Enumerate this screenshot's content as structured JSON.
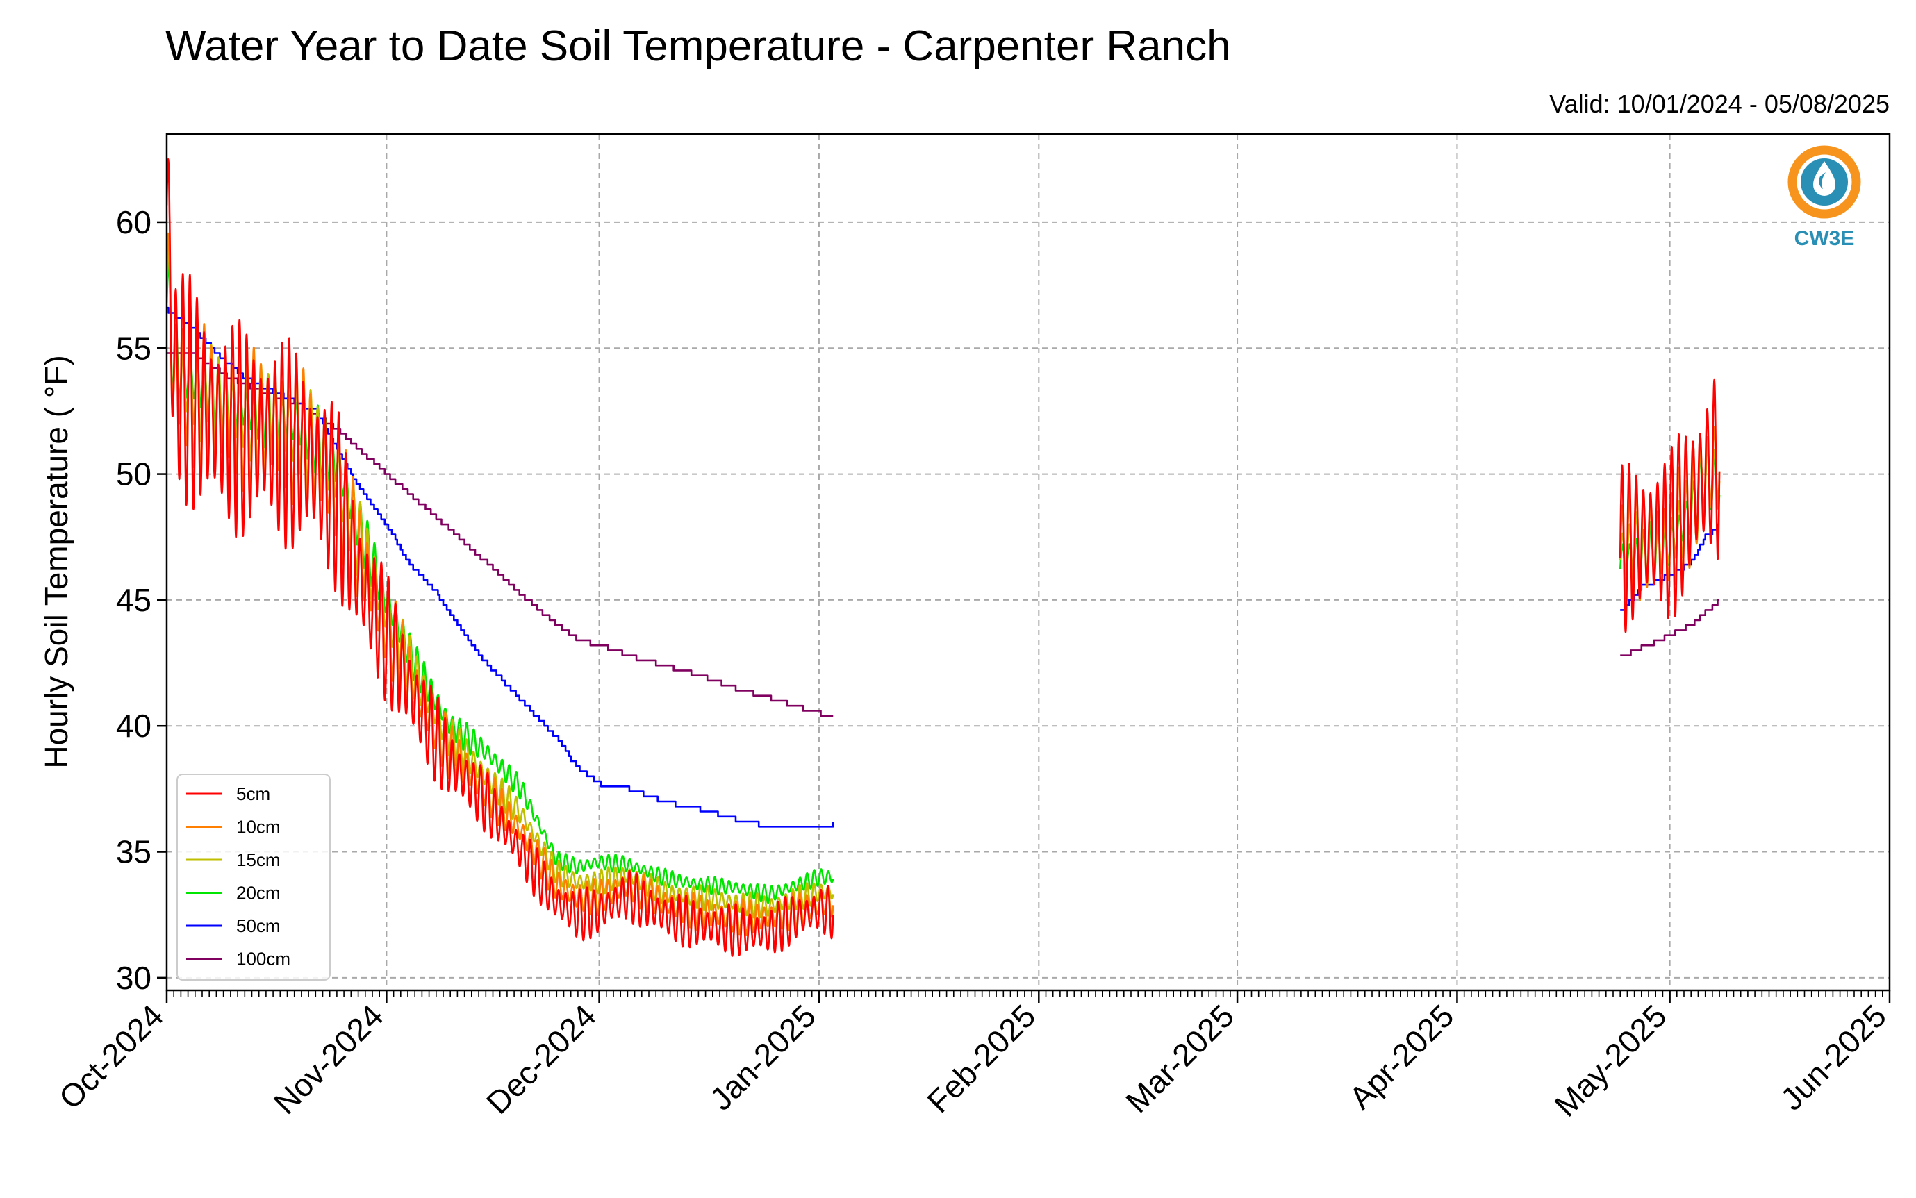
{
  "chart_data": {
    "type": "line",
    "title": "Water Year to Date Soil Temperature - Carpenter Ranch",
    "valid_text": "Valid: 10/01/2024 - 05/08/2025",
    "ylabel": "Hourly Soil Temperature ( °F)",
    "xlabel": "",
    "xlim": [
      "2024-10-01",
      "2025-06-01"
    ],
    "ylim": [
      29.5,
      63.5
    ],
    "grid": true,
    "legend_position": "lower-left",
    "x_ticks": [
      "2024-10-01",
      "2024-11-01",
      "2024-12-01",
      "2025-01-01",
      "2025-02-01",
      "2025-03-01",
      "2025-04-01",
      "2025-05-01",
      "2025-06-01"
    ],
    "x_tick_labels": [
      "Oct-2024",
      "Nov-2024",
      "Dec-2024",
      "Jan-2025",
      "Feb-2025",
      "Mar-2025",
      "Apr-2025",
      "May-2025",
      "Jun-2025"
    ],
    "y_ticks": [
      30,
      35,
      40,
      45,
      50,
      55,
      60
    ],
    "y_tick_labels": [
      "30",
      "35",
      "40",
      "45",
      "50",
      "55",
      "60"
    ],
    "series": [
      {
        "name": "5cm",
        "color": "#ff0000",
        "diurnal": true,
        "segments": [
          [
            [
              "2024-10-01",
              61
            ],
            [
              "2024-10-02",
              54
            ],
            [
              "2024-10-08",
              52
            ],
            [
              "2024-10-15",
              51.5
            ],
            [
              "2024-10-20",
              51
            ],
            [
              "2024-10-25",
              49
            ],
            [
              "2024-10-28",
              46
            ],
            [
              "2024-11-01",
              43.5
            ],
            [
              "2024-11-05",
              41
            ],
            [
              "2024-11-10",
              38.5
            ],
            [
              "2024-11-15",
              37
            ],
            [
              "2024-11-20",
              35
            ],
            [
              "2024-11-25",
              33
            ],
            [
              "2024-11-28",
              32.5
            ],
            [
              "2024-12-01",
              32.6
            ],
            [
              "2024-12-05",
              33.3
            ],
            [
              "2024-12-10",
              32.5
            ],
            [
              "2024-12-15",
              32.1
            ],
            [
              "2024-12-20",
              31.9
            ],
            [
              "2024-12-25",
              31.8
            ],
            [
              "2024-12-28",
              32.3
            ],
            [
              "2025-01-01",
              32.7
            ],
            [
              "2025-01-03",
              32.6
            ]
          ],
          [
            [
              "2025-04-24",
              47
            ],
            [
              "2025-04-28",
              47.5
            ],
            [
              "2025-05-01",
              47.5
            ],
            [
              "2025-05-04",
              49
            ],
            [
              "2025-05-06",
              50
            ],
            [
              "2025-05-08",
              50.5
            ]
          ]
        ]
      },
      {
        "name": "10cm",
        "color": "#ff8000",
        "diurnal": true,
        "segments": [
          [
            [
              "2024-10-01",
              58.5
            ],
            [
              "2024-10-02",
              54
            ],
            [
              "2024-10-08",
              52.5
            ],
            [
              "2024-10-15",
              52
            ],
            [
              "2024-10-20",
              51.5
            ],
            [
              "2024-10-25",
              49.5
            ],
            [
              "2024-10-28",
              47
            ],
            [
              "2024-11-01",
              44
            ],
            [
              "2024-11-05",
              41.5
            ],
            [
              "2024-11-10",
              39
            ],
            [
              "2024-11-15",
              37.5
            ],
            [
              "2024-11-20",
              35.8
            ],
            [
              "2024-11-25",
              33.7
            ],
            [
              "2024-11-28",
              33.2
            ],
            [
              "2024-12-01",
              33.2
            ],
            [
              "2024-12-05",
              33.7
            ],
            [
              "2024-12-10",
              33
            ],
            [
              "2024-12-15",
              32.6
            ],
            [
              "2024-12-20",
              32.4
            ],
            [
              "2024-12-25",
              32.4
            ],
            [
              "2024-12-28",
              32.6
            ],
            [
              "2025-01-01",
              32.9
            ],
            [
              "2025-01-03",
              33
            ]
          ],
          [
            [
              "2025-04-24",
              47
            ],
            [
              "2025-04-28",
              47.3
            ],
            [
              "2025-05-01",
              47.3
            ],
            [
              "2025-05-04",
              48.8
            ],
            [
              "2025-05-06",
              50
            ],
            [
              "2025-05-08",
              50.5
            ]
          ]
        ]
      },
      {
        "name": "15cm",
        "color": "#bfbf00",
        "diurnal": true,
        "segments": [
          [
            [
              "2024-10-01",
              58
            ],
            [
              "2024-10-02",
              54
            ],
            [
              "2024-10-08",
              52.8
            ],
            [
              "2024-10-15",
              52.2
            ],
            [
              "2024-10-20",
              51.8
            ],
            [
              "2024-10-25",
              50
            ],
            [
              "2024-10-28",
              47.5
            ],
            [
              "2024-11-01",
              44.5
            ],
            [
              "2024-11-05",
              42
            ],
            [
              "2024-11-10",
              39.5
            ],
            [
              "2024-11-15",
              38
            ],
            [
              "2024-11-20",
              36.5
            ],
            [
              "2024-11-25",
              34.2
            ],
            [
              "2024-11-28",
              33.8
            ],
            [
              "2024-12-01",
              33.8
            ],
            [
              "2024-12-05",
              34.1
            ],
            [
              "2024-12-10",
              33.4
            ],
            [
              "2024-12-15",
              33.2
            ],
            [
              "2024-12-20",
              33
            ],
            [
              "2024-12-25",
              32.8
            ],
            [
              "2024-12-28",
              33.1
            ],
            [
              "2025-01-01",
              33.4
            ],
            [
              "2025-01-03",
              33.4
            ]
          ],
          [
            [
              "2025-04-24",
              46.8
            ],
            [
              "2025-04-28",
              47.3
            ],
            [
              "2025-05-01",
              47.3
            ],
            [
              "2025-05-04",
              48.5
            ],
            [
              "2025-05-06",
              49.8
            ],
            [
              "2025-05-08",
              50
            ]
          ]
        ]
      },
      {
        "name": "20cm",
        "color": "#00e600",
        "diurnal": true,
        "segments": [
          [
            [
              "2024-10-01",
              57.5
            ],
            [
              "2024-10-02",
              54.5
            ],
            [
              "2024-10-08",
              53
            ],
            [
              "2024-10-15",
              52.5
            ],
            [
              "2024-10-20",
              52
            ],
            [
              "2024-10-25",
              50.5
            ],
            [
              "2024-10-28",
              48
            ],
            [
              "2024-11-01",
              45
            ],
            [
              "2024-11-05",
              42.5
            ],
            [
              "2024-11-10",
              40
            ],
            [
              "2024-11-15",
              39
            ],
            [
              "2024-11-20",
              37.5
            ],
            [
              "2024-11-25",
              34.7
            ],
            [
              "2024-11-28",
              34.4
            ],
            [
              "2024-12-01",
              34.6
            ],
            [
              "2024-12-05",
              34.5
            ],
            [
              "2024-12-10",
              34
            ],
            [
              "2024-12-15",
              33.7
            ],
            [
              "2024-12-20",
              33.6
            ],
            [
              "2024-12-25",
              33.3
            ],
            [
              "2024-12-28",
              33.6
            ],
            [
              "2025-01-01",
              34
            ],
            [
              "2025-01-03",
              34
            ]
          ],
          [
            [
              "2025-04-24",
              46.5
            ],
            [
              "2025-04-28",
              47
            ],
            [
              "2025-05-01",
              47.2
            ],
            [
              "2025-05-04",
              48.5
            ],
            [
              "2025-05-06",
              50
            ],
            [
              "2025-05-08",
              49.5
            ]
          ]
        ]
      },
      {
        "name": "50cm",
        "color": "#0000ff",
        "diurnal": false,
        "segments": [
          [
            [
              "2024-10-01",
              56.5
            ],
            [
              "2024-10-04",
              56
            ],
            [
              "2024-10-08",
              54.8
            ],
            [
              "2024-10-12",
              53.8
            ],
            [
              "2024-10-18",
              53
            ],
            [
              "2024-10-22",
              52.5
            ],
            [
              "2024-10-25",
              51
            ],
            [
              "2024-10-28",
              49.5
            ],
            [
              "2024-11-01",
              48
            ],
            [
              "2024-11-04",
              46.5
            ],
            [
              "2024-11-08",
              45.3
            ],
            [
              "2024-11-11",
              44
            ],
            [
              "2024-11-15",
              42.5
            ],
            [
              "2024-11-20",
              41
            ],
            [
              "2024-11-25",
              39.5
            ],
            [
              "2024-11-28",
              38.3
            ],
            [
              "2024-12-01",
              37.7
            ],
            [
              "2024-12-05",
              37.5
            ],
            [
              "2024-12-10",
              37
            ],
            [
              "2024-12-15",
              36.7
            ],
            [
              "2024-12-20",
              36.3
            ],
            [
              "2024-12-25",
              36
            ],
            [
              "2025-01-01",
              36
            ],
            [
              "2025-01-03",
              36.1
            ]
          ],
          [
            [
              "2025-04-24",
              44.5
            ],
            [
              "2025-04-27",
              45.5
            ],
            [
              "2025-05-01",
              46
            ],
            [
              "2025-05-04",
              46.5
            ],
            [
              "2025-05-06",
              47.5
            ],
            [
              "2025-05-08",
              48
            ]
          ]
        ]
      },
      {
        "name": "100cm",
        "color": "#800060",
        "diurnal": false,
        "segments": [
          [
            [
              "2024-10-01",
              54.8
            ],
            [
              "2024-10-05",
              54.7
            ],
            [
              "2024-10-10",
              53.8
            ],
            [
              "2024-10-15",
              53.2
            ],
            [
              "2024-10-20",
              52.7
            ],
            [
              "2024-10-25",
              51.8
            ],
            [
              "2024-10-30",
              50.5
            ],
            [
              "2024-11-01",
              50
            ],
            [
              "2024-11-05",
              49
            ],
            [
              "2024-11-10",
              47.8
            ],
            [
              "2024-11-15",
              46.5
            ],
            [
              "2024-11-20",
              45.2
            ],
            [
              "2024-11-25",
              44
            ],
            [
              "2024-11-28",
              43.4
            ],
            [
              "2024-12-01",
              43.2
            ],
            [
              "2024-12-05",
              42.8
            ],
            [
              "2024-12-10",
              42.4
            ],
            [
              "2024-12-15",
              42
            ],
            [
              "2024-12-20",
              41.5
            ],
            [
              "2024-12-25",
              41.1
            ],
            [
              "2025-01-01",
              40.5
            ],
            [
              "2025-01-03",
              40.4
            ]
          ],
          [
            [
              "2025-04-24",
              42.7
            ],
            [
              "2025-04-27",
              43.1
            ],
            [
              "2025-05-01",
              43.6
            ],
            [
              "2025-05-04",
              44
            ],
            [
              "2025-05-06",
              44.5
            ],
            [
              "2025-05-08",
              45
            ]
          ]
        ]
      }
    ]
  },
  "logo": {
    "text": "CW3E",
    "ring_color": "#f7941d",
    "wave_color": "#2a8fb5"
  }
}
